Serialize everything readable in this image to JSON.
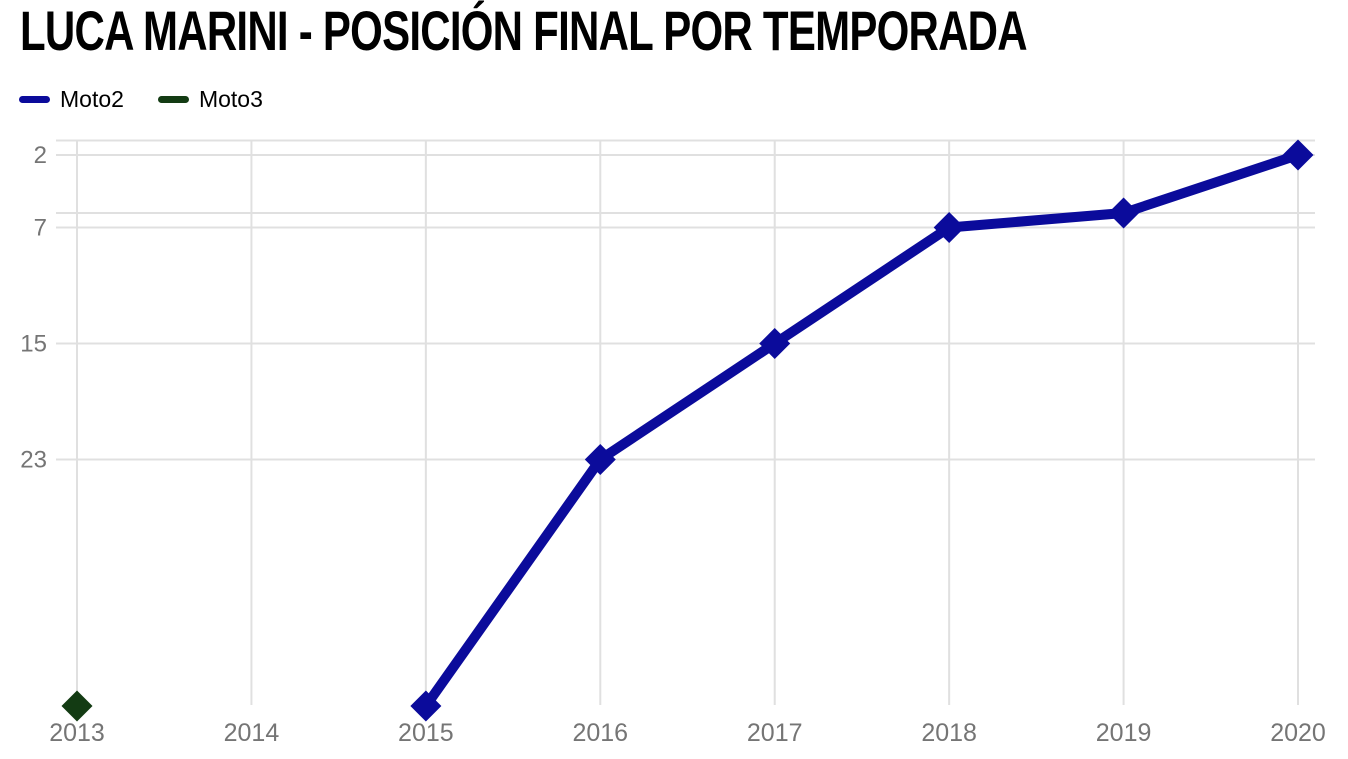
{
  "page": {
    "background": "#ffffff"
  },
  "chart_data": {
    "type": "line",
    "title": "LUCA MARINI - POSICIÓN FINAL POR TEMPORADA",
    "xlabel": "",
    "ylabel": "",
    "x_categories": [
      2013,
      2014,
      2015,
      2016,
      2017,
      2018,
      2019,
      2020
    ],
    "x_tick_labels": [
      "2013",
      "2014",
      "2015",
      "2016",
      "2017",
      "2018",
      "2019",
      "2020"
    ],
    "series": [
      {
        "name": "Moto2",
        "color": "#0b0b9b",
        "marker": "diamond",
        "points": [
          {
            "year": 2015,
            "position": 40
          },
          {
            "year": 2016,
            "position": 23
          },
          {
            "year": 2017,
            "position": 15
          },
          {
            "year": 2018,
            "position": 7
          },
          {
            "year": 2019,
            "position": 6
          },
          {
            "year": 2020,
            "position": 2
          }
        ]
      },
      {
        "name": "Moto3",
        "color": "#133b13",
        "marker": "diamond",
        "points": [
          {
            "year": 2013,
            "position": 40
          }
        ]
      }
    ],
    "y_axis": {
      "inverted": true,
      "range": [
        1,
        40
      ],
      "tick_labels": [
        2,
        7,
        15,
        23
      ],
      "gridline_values": [
        1,
        2,
        6,
        7,
        15,
        23
      ]
    },
    "legend_position": "top-left",
    "grid": true,
    "colors": {
      "grid": "#e0e0e0",
      "tick_text": "#757575",
      "title_text": "#000000",
      "background": "#ffffff"
    }
  }
}
